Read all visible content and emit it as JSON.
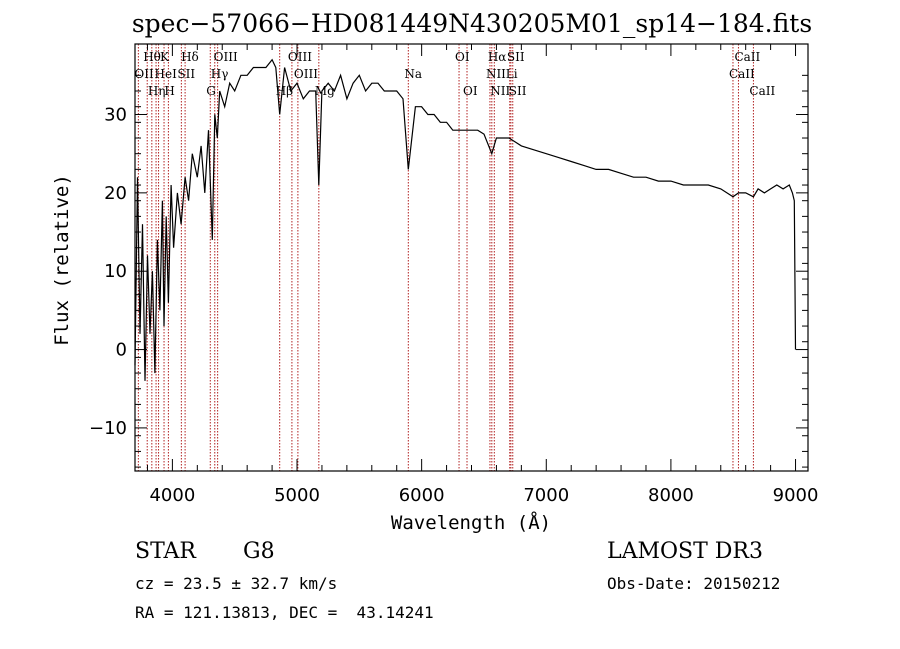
{
  "chart_data": {
    "type": "line",
    "title": "spec−57066−HD081449N430205M01_sp14−184.fits",
    "xlabel": "Wavelength (Å)",
    "ylabel": "Flux (relative)",
    "xlim": [
      3700,
      9100
    ],
    "ylim": [
      -15.5,
      39
    ],
    "xticks": [
      4000,
      5000,
      6000,
      7000,
      8000,
      9000
    ],
    "xtick_labels": [
      "4000",
      "5000",
      "6000",
      "7000",
      "8000",
      "9000"
    ],
    "yticks": [
      -10,
      0,
      10,
      20,
      30
    ],
    "ytick_labels": [
      "−10",
      "0",
      "10",
      "20",
      "30"
    ],
    "series": [
      {
        "name": "spectrum",
        "color": "#000000",
        "x": [
          3700,
          3720,
          3740,
          3760,
          3780,
          3800,
          3820,
          3840,
          3860,
          3880,
          3900,
          3920,
          3933,
          3950,
          3968,
          3990,
          4010,
          4040,
          4070,
          4102,
          4130,
          4160,
          4200,
          4230,
          4260,
          4290,
          4320,
          4340,
          4360,
          4380,
          4420,
          4460,
          4500,
          4550,
          4600,
          4650,
          4700,
          4750,
          4800,
          4830,
          4861,
          4900,
          4950,
          5000,
          5050,
          5100,
          5150,
          5175,
          5200,
          5250,
          5300,
          5350,
          5400,
          5450,
          5500,
          5550,
          5600,
          5650,
          5700,
          5750,
          5800,
          5850,
          5893,
          5950,
          6000,
          6050,
          6100,
          6150,
          6200,
          6250,
          6300,
          6350,
          6400,
          6450,
          6500,
          6563,
          6600,
          6650,
          6700,
          6750,
          6800,
          6900,
          7000,
          7100,
          7200,
          7300,
          7400,
          7500,
          7600,
          7700,
          7800,
          7900,
          8000,
          8100,
          8200,
          8300,
          8400,
          8498,
          8542,
          8600,
          8662,
          8700,
          8750,
          8800,
          8850,
          8900,
          8950,
          8975,
          8990,
          9000
        ],
        "y": [
          -2,
          22,
          2,
          16,
          -4,
          12,
          2,
          10,
          -3,
          14,
          5,
          19,
          3,
          17,
          6,
          21,
          13,
          20,
          16,
          22,
          19,
          25,
          22,
          26,
          20,
          28,
          14,
          30,
          27,
          33,
          31,
          34,
          33,
          35,
          35,
          36,
          36,
          36,
          37,
          36,
          30,
          36,
          33,
          34,
          32,
          33,
          33,
          21,
          33,
          34,
          33,
          35,
          32,
          34,
          35,
          33,
          34,
          34,
          33,
          33,
          33,
          32,
          23,
          31,
          31,
          30,
          30,
          29,
          29,
          28,
          28,
          28,
          28,
          28,
          27.5,
          25,
          27,
          27,
          27,
          26.5,
          26,
          25.5,
          25,
          24.5,
          24,
          23.5,
          23,
          23,
          22.5,
          22,
          22,
          21.5,
          21.5,
          21,
          21,
          21,
          20.5,
          19.5,
          20,
          20,
          19.5,
          20.5,
          20,
          20.5,
          21,
          20.5,
          21,
          20,
          19,
          0
        ]
      }
    ],
    "spectral_lines": [
      {
        "x": 3727,
        "label": "OII",
        "row": 1
      },
      {
        "x": 3798,
        "label": "Hθ",
        "row": 0
      },
      {
        "x": 3835,
        "label": "Hη",
        "row": 2
      },
      {
        "x": 3869,
        "label": "",
        "row": 0
      },
      {
        "x": 3889,
        "label": "HeI",
        "row": 1
      },
      {
        "x": 3933,
        "label": "K",
        "row": 0
      },
      {
        "x": 3968,
        "label": "H",
        "row": 2
      },
      {
        "x": 4072,
        "label": "SII",
        "row": 1
      },
      {
        "x": 4102,
        "label": "Hδ",
        "row": 0
      },
      {
        "x": 4304,
        "label": "G",
        "row": 2
      },
      {
        "x": 4340,
        "label": "Hγ",
        "row": 1
      },
      {
        "x": 4363,
        "label": "OIII",
        "row": 0
      },
      {
        "x": 4861,
        "label": "Hβ",
        "row": 2
      },
      {
        "x": 4959,
        "label": "OIII",
        "row": 0
      },
      {
        "x": 5007,
        "label": "OIII",
        "row": 1
      },
      {
        "x": 5175,
        "label": "Mg",
        "row": 2
      },
      {
        "x": 5893,
        "label": "Na",
        "row": 1
      },
      {
        "x": 6300,
        "label": "OI",
        "row": 0
      },
      {
        "x": 6364,
        "label": "OI",
        "row": 2
      },
      {
        "x": 6548,
        "label": "NII",
        "row": 1
      },
      {
        "x": 6563,
        "label": "Hα",
        "row": 0
      },
      {
        "x": 6583,
        "label": "NII",
        "row": 2
      },
      {
        "x": 6707,
        "label": "Li",
        "row": 1
      },
      {
        "x": 6716,
        "label": "SII",
        "row": 0
      },
      {
        "x": 6731,
        "label": "SII",
        "row": 2
      },
      {
        "x": 8498,
        "label": "CaII",
        "row": 1
      },
      {
        "x": 8542,
        "label": "CaII",
        "row": 0
      },
      {
        "x": 8662,
        "label": "CaII",
        "row": 2
      }
    ]
  },
  "info": {
    "class_text": "STAR",
    "subclass_text": "G8",
    "survey_text": "LAMOST DR3",
    "cz_text": "cz = 23.5 ± 32.7 km/s",
    "obsdate_text": "Obs-Date: 20150212",
    "radec_text": "RA = 121.13813, DEC =  43.14241"
  },
  "colors": {
    "line_marker": "#b22222",
    "spectrum": "#000000",
    "axes": "#000000"
  }
}
